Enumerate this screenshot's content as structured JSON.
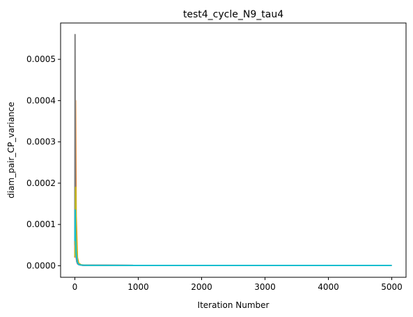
{
  "chart_data": {
    "type": "line",
    "title": "test4_cycle_N9_tau4",
    "xlabel": "Iteration Number",
    "ylabel": "diam_pair_CP_variance",
    "xlim": [
      -225,
      5225
    ],
    "ylim": [
      -2.8e-05,
      0.000588
    ],
    "xticks": [
      0,
      1000,
      2000,
      3000,
      4000,
      5000
    ],
    "xtick_labels": [
      "0",
      "1000",
      "2000",
      "3000",
      "4000",
      "5000"
    ],
    "yticks": [
      0.0,
      0.0001,
      0.0002,
      0.0003,
      0.0004,
      0.0005
    ],
    "ytick_labels": [
      "0.0000",
      "0.0001",
      "0.0002",
      "0.0003",
      "0.0004",
      "0.0005"
    ],
    "grid": false,
    "legend": "none",
    "series": [
      {
        "color": "#1f77b4",
        "x": [
          0,
          5,
          10,
          20,
          40,
          60,
          100,
          200,
          1000,
          5000
        ],
        "y": [
          2e-05,
          0.00022,
          8e-05,
          4e-05,
          1e-05,
          4e-06,
          1.5e-06,
          1e-06,
          8e-07,
          8e-07
        ]
      },
      {
        "color": "#ff7f0e",
        "x": [
          0,
          5,
          10,
          20,
          40,
          60,
          100,
          200,
          1000,
          5000
        ],
        "y": [
          3e-05,
          5e-05,
          0.0004,
          0.00012,
          2e-05,
          6e-06,
          2e-06,
          1e-06,
          8e-07,
          8e-07
        ]
      },
      {
        "color": "#2ca02c",
        "x": [
          0,
          5,
          10,
          20,
          40,
          60,
          100,
          200,
          1000,
          5000
        ],
        "y": [
          2e-05,
          9e-05,
          4e-05,
          2e-05,
          6e-06,
          3e-06,
          1.5e-06,
          1e-06,
          8e-07,
          8e-07
        ]
      },
      {
        "color": "#d62728",
        "x": [
          0,
          5,
          10,
          20,
          40,
          60,
          100,
          200,
          1000,
          5000
        ],
        "y": [
          2e-05,
          0.00015,
          6e-05,
          3e-05,
          8e-06,
          3e-06,
          1.5e-06,
          1e-06,
          8e-07,
          8e-07
        ]
      },
      {
        "color": "#9467bd",
        "x": [
          0,
          5,
          10,
          20,
          40,
          60,
          100,
          200,
          1000,
          5000
        ],
        "y": [
          3e-05,
          0.0003,
          0.0001,
          4e-05,
          1e-05,
          4e-06,
          1.5e-06,
          1e-06,
          8e-07,
          8e-07
        ]
      },
      {
        "color": "#8c564b",
        "x": [
          0,
          5,
          10,
          20,
          40,
          60,
          100,
          200,
          1000,
          5000
        ],
        "y": [
          2e-05,
          0.00012,
          5e-05,
          2e-05,
          6e-06,
          3e-06,
          1.5e-06,
          1e-06,
          8e-07,
          8e-07
        ]
      },
      {
        "color": "#e377c2",
        "x": [
          0,
          5,
          10,
          20,
          40,
          60,
          100,
          200,
          1000,
          5000
        ],
        "y": [
          2e-05,
          0.0001,
          4e-05,
          2e-05,
          5e-06,
          3e-06,
          1.5e-06,
          1e-06,
          8e-07,
          8e-07
        ]
      },
      {
        "color": "#7f7f7f",
        "x": [
          0,
          3,
          8,
          15,
          30,
          50,
          100,
          200,
          1000,
          5000
        ],
        "y": [
          5e-05,
          0.00056,
          0.0002,
          6e-05,
          1e-05,
          4e-06,
          1.5e-06,
          1e-06,
          8e-07,
          8e-07
        ]
      },
      {
        "color": "#bcbd22",
        "x": [
          0,
          5,
          12,
          20,
          40,
          60,
          100,
          200,
          1000,
          5000
        ],
        "y": [
          2e-05,
          5e-05,
          0.00019,
          8e-05,
          1.5e-05,
          5e-06,
          2e-06,
          1e-06,
          8e-07,
          8e-07
        ]
      },
      {
        "color": "#17becf",
        "x": [
          0,
          5,
          10,
          20,
          40,
          60,
          100,
          200,
          1000,
          5000
        ],
        "y": [
          6e-05,
          0.000135,
          7e-05,
          3e-05,
          8e-06,
          3e-06,
          1.5e-06,
          1e-06,
          8e-07,
          8e-07
        ]
      }
    ]
  }
}
